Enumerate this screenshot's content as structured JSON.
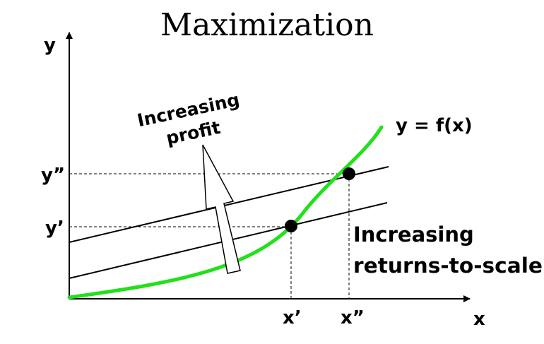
{
  "title": "Maximization",
  "axes": {
    "y_label": "y",
    "x_label": "x"
  },
  "ticks": {
    "y_prime": "y’",
    "y_double": "y”",
    "x_prime": "x’",
    "x_double": "x”"
  },
  "curve_label": "y = f(x)",
  "annotations": {
    "profit_line1": "Increasing",
    "profit_line2": "profit",
    "rts_line1": "Increasing",
    "rts_line2": "returns-to-scale"
  },
  "colors": {
    "curve": "#22e01a",
    "ink": "#000000"
  }
}
